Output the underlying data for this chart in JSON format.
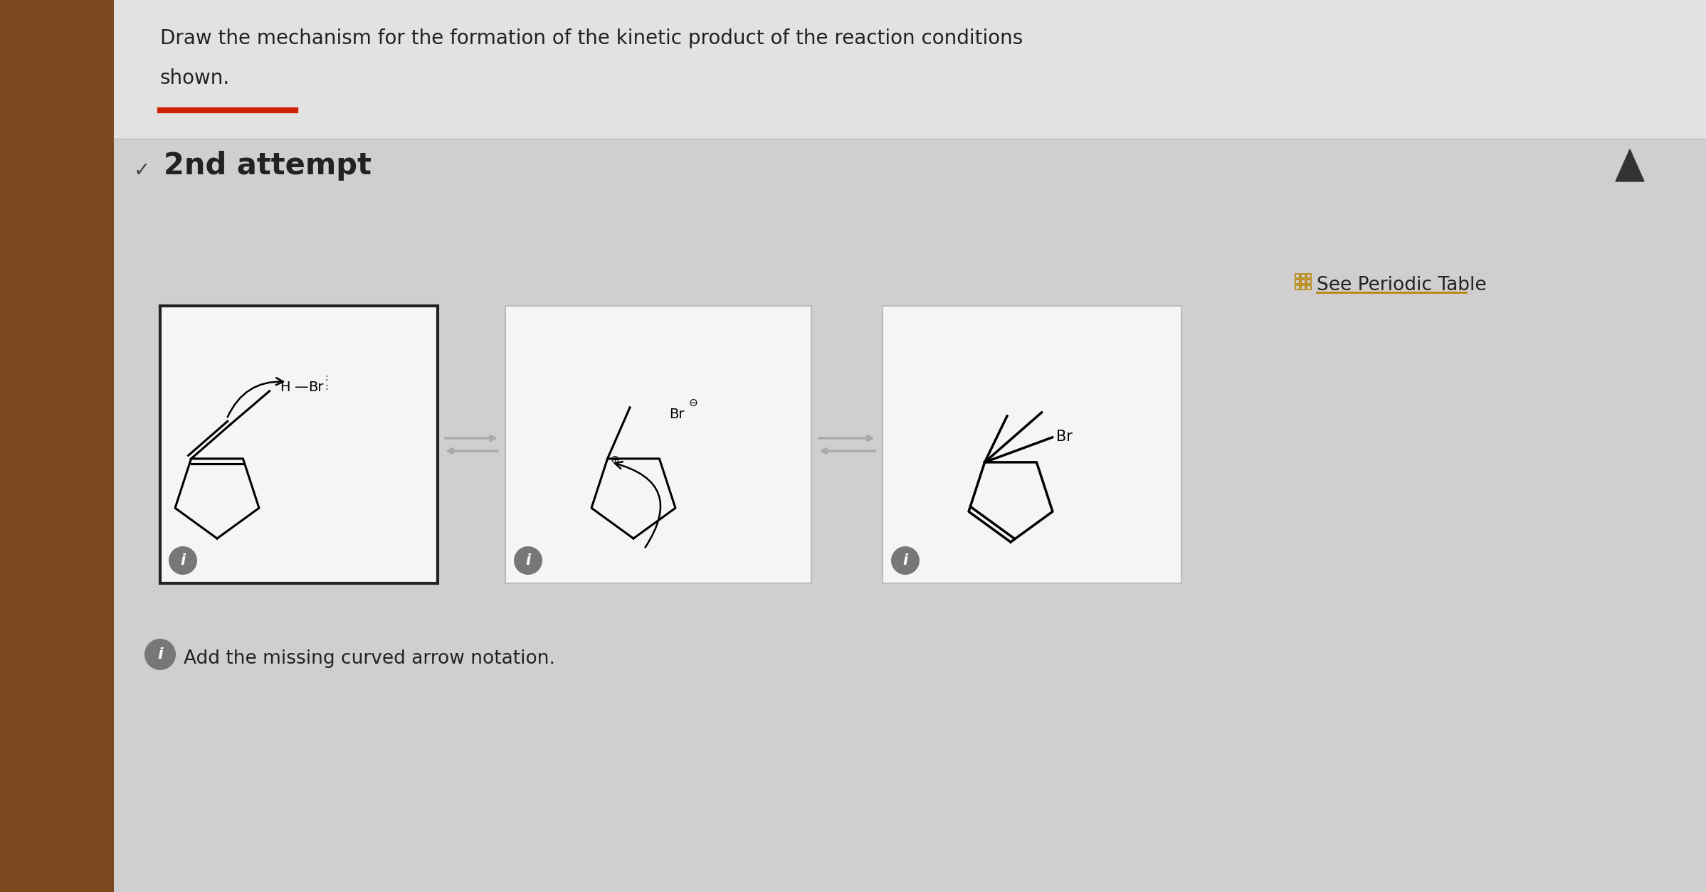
{
  "title_line1": "Draw the mechanism for the formation of the kinetic product of the reaction conditions",
  "title_line2": "shown.",
  "subtitle_text": "2nd attempt",
  "footer_text": "Add the missing curved arrow notation.",
  "periodic_table_text": "See Periodic Table",
  "bg_color": "#d0cece",
  "top_panel_color": "#e2e2e2",
  "content_panel_color": "#e8e8e8",
  "box_bg": "#f5f5f5",
  "box1_edge": "#222222",
  "box23_edge": "#bbbbbb",
  "title_color": "#222222",
  "subtitle_color": "#222222",
  "red_line_color": "#cc2200",
  "arrow_color": "#aaaaaa",
  "info_circle_color": "#777777",
  "periodic_table_color": "#b8860b",
  "sidebar_color": "#7a4a1e",
  "chevron_color": "#444444"
}
